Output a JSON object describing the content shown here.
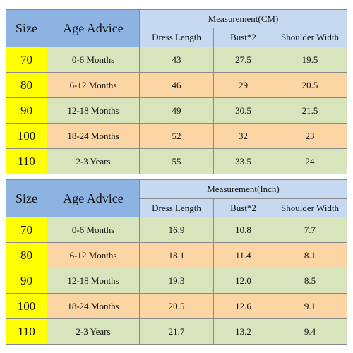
{
  "tables": [
    {
      "headers": {
        "size": "Size",
        "age": "Age Advice",
        "measurement": "Measurement(CM)",
        "dress_length": "Dress Length",
        "bust": "Bust*2",
        "shoulder": "Shoulder Width"
      },
      "rows": [
        {
          "size": "70",
          "age": "0-6 Months",
          "dress": "43",
          "bust": "27.5",
          "shoulder": "19.5"
        },
        {
          "size": "80",
          "age": "6-12 Months",
          "dress": "46",
          "bust": "29",
          "shoulder": "20.5"
        },
        {
          "size": "90",
          "age": "12-18 Months",
          "dress": "49",
          "bust": "30.5",
          "shoulder": "21.5"
        },
        {
          "size": "100",
          "age": "18-24 Months",
          "dress": "52",
          "bust": "32",
          "shoulder": "23"
        },
        {
          "size": "110",
          "age": "2-3 Years",
          "dress": "55",
          "bust": "33.5",
          "shoulder": "24"
        }
      ]
    },
    {
      "headers": {
        "size": "Size",
        "age": "Age Advice",
        "measurement": "Measurement(Inch)",
        "dress_length": "Dress Length",
        "bust": "Bust*2",
        "shoulder": "Shoulder Width"
      },
      "rows": [
        {
          "size": "70",
          "age": "0-6 Months",
          "dress": "16.9",
          "bust": "10.8",
          "shoulder": "7.7"
        },
        {
          "size": "80",
          "age": "6-12 Months",
          "dress": "18.1",
          "bust": "11.4",
          "shoulder": "8.1"
        },
        {
          "size": "90",
          "age": "12-18 Months",
          "dress": "19.3",
          "bust": "12.0",
          "shoulder": "8.5"
        },
        {
          "size": "100",
          "age": "18-24 Months",
          "dress": "20.5",
          "bust": "12.6",
          "shoulder": "9.1"
        },
        {
          "size": "110",
          "age": "2-3 Years",
          "dress": "21.7",
          "bust": "13.2",
          "shoulder": "9.4"
        }
      ]
    }
  ],
  "colors": {
    "header_dark": "#8db3e2",
    "header_light": "#c6d9f1",
    "size_cell": "#ffff00",
    "row_green": "#d8e4bc",
    "row_orange": "#fcd5a4",
    "border": "#8a8a8a"
  }
}
